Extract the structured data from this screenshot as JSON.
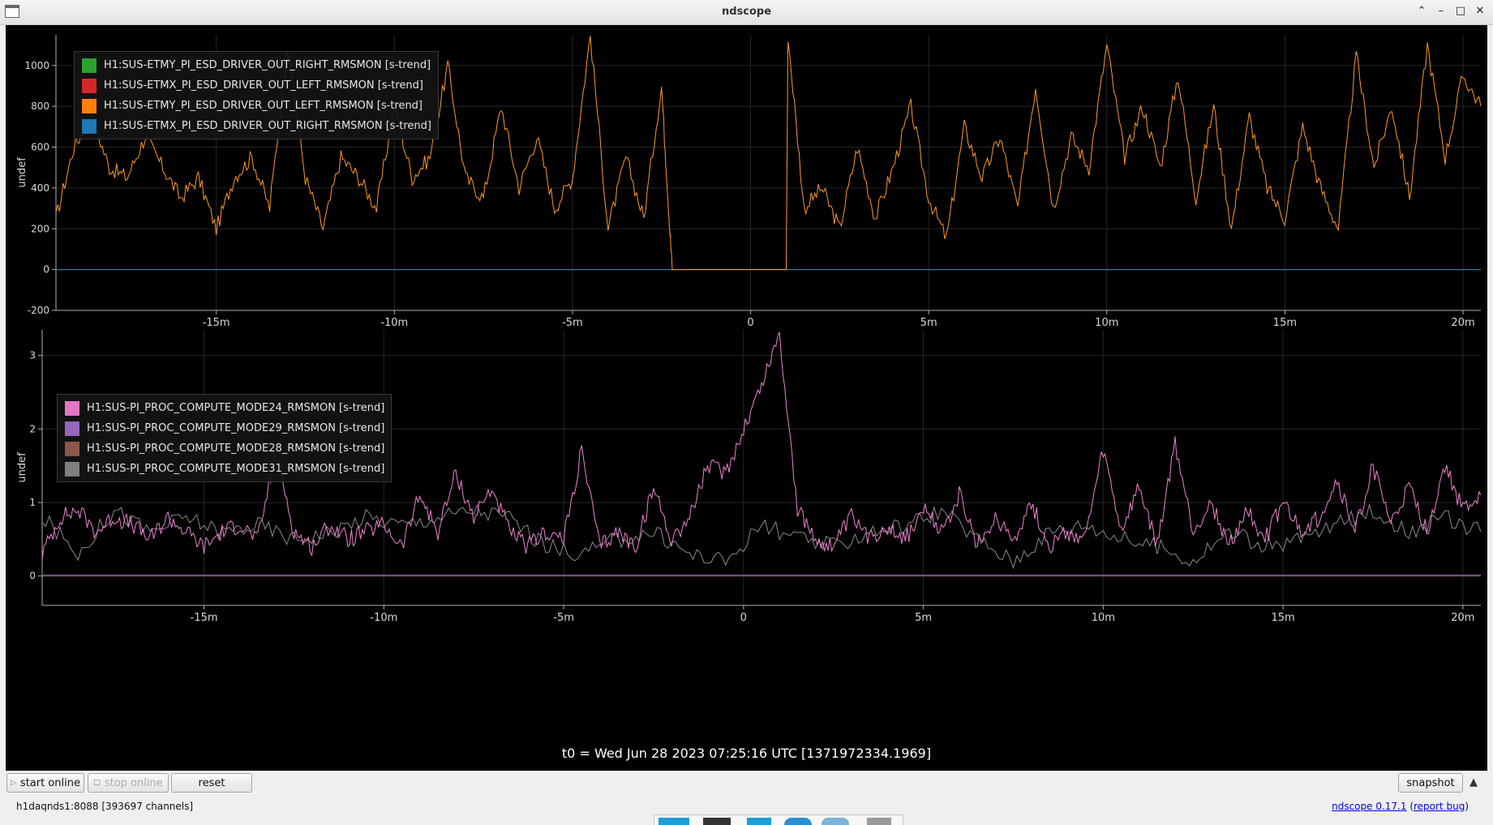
{
  "window": {
    "title": "ndscope",
    "controls": [
      "chevron-up-icon",
      "minimize-icon",
      "maximize-icon",
      "close-icon"
    ]
  },
  "plots": [
    {
      "ylabel": "undef",
      "yticks": [
        "1000",
        "800",
        "600",
        "400",
        "200",
        "0",
        "-200"
      ],
      "xticks": [
        "-15m",
        "-10m",
        "-5m",
        "0",
        "5m",
        "10m",
        "15m",
        "20m"
      ],
      "legend": [
        {
          "label": "H1:SUS-ETMY_PI_ESD_DRIVER_OUT_RIGHT_RMSMON [s-trend]",
          "color": "#2ca02c"
        },
        {
          "label": "H1:SUS-ETMX_PI_ESD_DRIVER_OUT_LEFT_RMSMON [s-trend]",
          "color": "#d62728"
        },
        {
          "label": "H1:SUS-ETMY_PI_ESD_DRIVER_OUT_LEFT_RMSMON [s-trend]",
          "color": "#ff7f0e"
        },
        {
          "label": "H1:SUS-ETMX_PI_ESD_DRIVER_OUT_RIGHT_RMSMON [s-trend]",
          "color": "#1f77b4"
        }
      ]
    },
    {
      "ylabel": "undef",
      "yticks": [
        "3",
        "2",
        "1",
        "0"
      ],
      "xticks": [
        "-15m",
        "-10m",
        "-5m",
        "0",
        "5m",
        "10m",
        "15m",
        "20m"
      ],
      "legend": [
        {
          "label": "H1:SUS-PI_PROC_COMPUTE_MODE24_RMSMON [s-trend]",
          "color": "#e377c2"
        },
        {
          "label": "H1:SUS-PI_PROC_COMPUTE_MODE29_RMSMON [s-trend]",
          "color": "#9467bd"
        },
        {
          "label": "H1:SUS-PI_PROC_COMPUTE_MODE28_RMSMON [s-trend]",
          "color": "#8c564b"
        },
        {
          "label": "H1:SUS-PI_PROC_COMPUTE_MODE31_RMSMON [s-trend]",
          "color": "#7f7f7f"
        }
      ]
    }
  ],
  "chart_data": [
    {
      "type": "line",
      "xlabel": "",
      "ylabel": "undef",
      "xlim": [
        -19.5,
        20.5
      ],
      "ylim": [
        -200,
        1150
      ],
      "x_units": "minutes relative to t0",
      "series": [
        {
          "name": "H1:SUS-ETMY_PI_ESD_DRIVER_OUT_LEFT_RMSMON [s-trend]",
          "color": "#ff9a1f",
          "x": [
            -19.5,
            -19.0,
            -18.5,
            -18.0,
            -17.5,
            -17.0,
            -16.5,
            -16.0,
            -15.5,
            -15.0,
            -14.5,
            -14.0,
            -13.5,
            -13.0,
            -12.5,
            -12.0,
            -11.5,
            -11.0,
            -10.5,
            -10.0,
            -9.5,
            -9.0,
            -8.5,
            -8.0,
            -7.5,
            -7.0,
            -6.5,
            -6.0,
            -5.5,
            -5.0,
            -4.5,
            -4.0,
            -3.5,
            -3.0,
            -2.5,
            -2.3,
            -2.2,
            1.0,
            1.05,
            1.5,
            2.0,
            2.5,
            3.0,
            3.5,
            4.0,
            4.5,
            5.0,
            5.5,
            6.0,
            6.5,
            7.0,
            7.5,
            8.0,
            8.5,
            9.0,
            9.5,
            10.0,
            10.5,
            11.0,
            11.5,
            12.0,
            12.5,
            13.0,
            13.5,
            14.0,
            14.5,
            15.0,
            15.5,
            16.0,
            16.5,
            17.0,
            17.5,
            18.0,
            18.5,
            19.0,
            19.5,
            20.0,
            20.5
          ],
          "y": [
            250,
            600,
            750,
            500,
            450,
            650,
            500,
            350,
            450,
            200,
            450,
            550,
            300,
            1100,
            450,
            200,
            550,
            450,
            300,
            800,
            450,
            550,
            1000,
            450,
            350,
            800,
            400,
            650,
            300,
            450,
            1150,
            200,
            550,
            250,
            900,
            300,
            0,
            0,
            1150,
            300,
            400,
            200,
            600,
            250,
            500,
            800,
            350,
            150,
            700,
            450,
            650,
            300,
            900,
            300,
            650,
            500,
            1100,
            550,
            800,
            500,
            950,
            350,
            800,
            200,
            750,
            400,
            250,
            700,
            400,
            200,
            1050,
            500,
            800,
            350,
            1100,
            550,
            950,
            800
          ]
        },
        {
          "name": "H1:SUS-ETMX_PI_ESD_DRIVER_OUT_RIGHT_RMSMON [s-trend]",
          "color": "#1f77b4",
          "x": [
            -19.5,
            20.5
          ],
          "y": [
            0,
            0
          ]
        },
        {
          "name": "H1:SUS-ETMY_PI_ESD_DRIVER_OUT_RIGHT_RMSMON [s-trend]",
          "color": "#2ca02c",
          "x": [
            -19.5,
            20.5
          ],
          "y": [
            0,
            0
          ]
        },
        {
          "name": "H1:SUS-ETMX_PI_ESD_DRIVER_OUT_LEFT_RMSMON [s-trend]",
          "color": "#d62728",
          "x": [
            -19.5,
            20.5
          ],
          "y": [
            0,
            0
          ]
        }
      ]
    },
    {
      "type": "line",
      "xlabel": "",
      "ylabel": "undef",
      "xlim": [
        -19.5,
        20.5
      ],
      "ylim": [
        -0.4,
        3.35
      ],
      "x_units": "minutes relative to t0",
      "series": [
        {
          "name": "H1:SUS-PI_PROC_COMPUTE_MODE24_RMSMON [s-trend]",
          "color": "#ee82d2",
          "x": [
            -19.5,
            -19.0,
            -18.5,
            -18.0,
            -17.5,
            -17.0,
            -16.5,
            -16.0,
            -15.5,
            -15.0,
            -14.5,
            -14.0,
            -13.5,
            -13.0,
            -12.5,
            -12.0,
            -11.5,
            -11.0,
            -10.5,
            -10.0,
            -9.5,
            -9.0,
            -8.5,
            -8.0,
            -7.5,
            -7.0,
            -6.5,
            -6.0,
            -5.5,
            -5.0,
            -4.5,
            -4.0,
            -3.5,
            -3.0,
            -2.5,
            -2.0,
            -1.5,
            -1.0,
            -0.5,
            0.0,
            0.5,
            1.0,
            1.5,
            2.0,
            2.5,
            3.0,
            3.5,
            4.0,
            4.5,
            5.0,
            5.5,
            6.0,
            6.5,
            7.0,
            7.5,
            8.0,
            8.5,
            9.0,
            9.5,
            10.0,
            10.5,
            11.0,
            11.5,
            12.0,
            12.5,
            13.0,
            13.5,
            14.0,
            14.5,
            15.0,
            15.5,
            16.0,
            16.5,
            17.0,
            17.5,
            18.0,
            18.5,
            19.0,
            19.5,
            20.0,
            20.5
          ],
          "y": [
            0.3,
            0.8,
            0.9,
            0.6,
            0.8,
            0.7,
            0.5,
            0.8,
            0.6,
            0.4,
            0.6,
            0.7,
            0.5,
            1.7,
            0.6,
            0.4,
            0.7,
            0.5,
            0.6,
            0.7,
            0.4,
            1.1,
            0.6,
            1.4,
            0.8,
            1.2,
            0.6,
            0.4,
            0.6,
            0.5,
            1.7,
            0.4,
            0.6,
            0.4,
            1.2,
            0.5,
            0.8,
            1.5,
            1.4,
            2.0,
            2.6,
            3.3,
            0.9,
            0.5,
            0.4,
            0.8,
            0.5,
            0.7,
            0.5,
            0.9,
            0.6,
            1.1,
            0.4,
            0.8,
            0.5,
            1.0,
            0.4,
            0.6,
            0.5,
            1.7,
            0.6,
            1.2,
            0.4,
            1.8,
            0.6,
            1.0,
            0.4,
            0.9,
            0.5,
            1.0,
            0.6,
            0.8,
            1.3,
            0.6,
            1.5,
            0.7,
            1.2,
            0.6,
            1.5,
            0.9,
            1.1
          ]
        },
        {
          "name": "H1:SUS-PI_PROC_COMPUTE_MODE31_RMSMON [s-trend]",
          "color": "#8a8a8a",
          "x": [
            -19.5,
            -18.5,
            -17.5,
            -16.5,
            -15.5,
            -14.5,
            -13.5,
            -12.5,
            -11.5,
            -10.5,
            -9.5,
            -8.5,
            -7.5,
            -6.5,
            -5.5,
            -4.5,
            -3.5,
            -2.5,
            -1.5,
            -0.5,
            0.5,
            1.5,
            2.5,
            3.5,
            4.5,
            5.5,
            6.5,
            7.5,
            8.5,
            9.5,
            10.5,
            11.5,
            12.5,
            13.5,
            14.5,
            15.5,
            16.5,
            17.5,
            18.5,
            19.5,
            20.5
          ],
          "y": [
            0.8,
            0.3,
            0.9,
            0.6,
            0.8,
            0.6,
            0.7,
            0.5,
            0.6,
            0.8,
            0.7,
            0.8,
            0.9,
            0.8,
            0.4,
            0.3,
            0.5,
            0.6,
            0.3,
            0.2,
            0.7,
            0.5,
            0.4,
            0.6,
            0.7,
            0.9,
            0.5,
            0.2,
            0.6,
            0.7,
            0.5,
            0.4,
            0.2,
            0.6,
            0.4,
            0.5,
            0.7,
            0.9,
            0.6,
            0.8,
            0.6
          ]
        },
        {
          "name": "H1:SUS-PI_PROC_COMPUTE_MODE29_RMSMON [s-trend]",
          "color": "#9467bd",
          "x": [
            -19.5,
            20.5
          ],
          "y": [
            0.01,
            0.01
          ]
        },
        {
          "name": "H1:SUS-PI_PROC_COMPUTE_MODE28_RMSMON [s-trend]",
          "color": "#8c564b",
          "x": [
            -19.5,
            20.5
          ],
          "y": [
            0.0,
            0.0
          ]
        }
      ]
    }
  ],
  "t0_label": "t0 = Wed Jun 28 2023 07:25:16 UTC [1371972334.1969]",
  "buttons": {
    "start_online": "start online",
    "stop_online": "stop online",
    "reset": "reset",
    "snapshot": "snapshot"
  },
  "status": {
    "server": "h1daqnds1:8088  [393697 channels]",
    "version_link": "ndscope 0.17.1",
    "report_link": "report bug"
  }
}
